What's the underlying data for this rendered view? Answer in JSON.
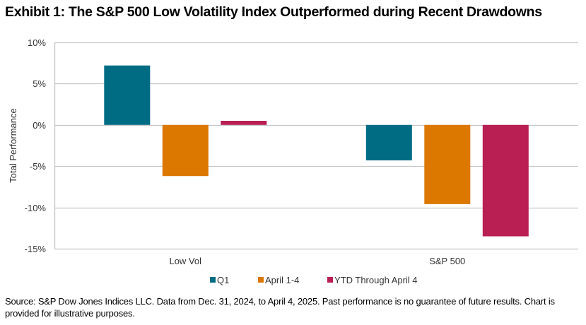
{
  "title": "Exhibit 1: The S&P 500 Low Volatility Index Outperformed during Recent Drawdowns",
  "source": "Source: S&P Dow Jones Indices LLC. Data from Dec. 31, 2024, to April 4, 2025. Past performance is no guarantee of future results. Chart is provided for illustrative purposes.",
  "chart_data": {
    "type": "bar",
    "title": "Exhibit 1: The S&P 500 Low Volatility Index Outperformed during Recent Drawdowns",
    "xlabel": "",
    "ylabel": "Total Performance",
    "ylim": [
      -15,
      10
    ],
    "yticks": [
      10,
      5,
      0,
      -5,
      -10,
      -15
    ],
    "ytick_labels": [
      "10%",
      "5%",
      "0%",
      "-5%",
      "-10%",
      "-15%"
    ],
    "grid": true,
    "legend_position": "bottom",
    "categories": [
      "Low Vol",
      "S&P 500"
    ],
    "series": [
      {
        "name": "Q1",
        "color": "#006C84",
        "values": [
          7.2,
          -4.3
        ]
      },
      {
        "name": "April 1-4",
        "color": "#DC7800",
        "values": [
          -6.2,
          -9.6
        ]
      },
      {
        "name": "YTD Through April 4",
        "color": "#B91F52",
        "values": [
          0.5,
          -13.5
        ]
      }
    ]
  }
}
